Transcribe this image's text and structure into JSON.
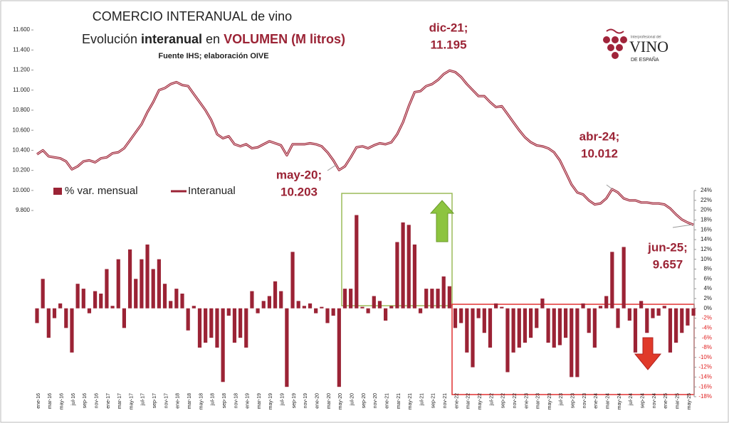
{
  "chart_data": {
    "type": "bar-line",
    "title": "COMERCIO INTERANUAL de vino",
    "title_parts": [
      "Evolución ",
      "interanual",
      " en ",
      "VOLUMEN (M litros)"
    ],
    "subtitle": "Fuente IHS; elaboración OIVE",
    "logo": {
      "small": "Interprofesional del",
      "big": "VINO",
      "sub": "DE ESPAÑA"
    },
    "categories": [
      "ene-16",
      null,
      "mar-16",
      null,
      "may-16",
      null,
      "jul-16",
      null,
      "sep-16",
      null,
      "nov-16",
      null,
      "ene-17",
      null,
      "mar-17",
      null,
      "may-17",
      null,
      "jul-17",
      null,
      "sep-17",
      null,
      "nov-17",
      null,
      "ene-18",
      null,
      "mar-18",
      null,
      "may-18",
      null,
      "jul-18",
      null,
      "sep-18",
      null,
      "nov-18",
      null,
      "ene-19",
      null,
      "mar-19",
      null,
      "may-19",
      null,
      "jul-19",
      null,
      "sep-19",
      null,
      "nov-19",
      null,
      "ene-20",
      null,
      "mar-20",
      null,
      "may-20",
      null,
      "jul-20",
      null,
      "sep-20",
      null,
      "nov-20",
      null,
      "ene-21",
      null,
      "mar-21",
      null,
      "may-21",
      null,
      "jul-21",
      null,
      "sep-21",
      null,
      "nov-21",
      null,
      "ene-22",
      null,
      "mar-22",
      null,
      "may-22",
      null,
      "jul-22",
      null,
      "sep-22",
      null,
      "nov-22",
      null,
      "ene-23",
      null,
      "mar-23",
      null,
      "may-23",
      null,
      "jul-23",
      null,
      "sep-23",
      null,
      "nov-23",
      null,
      "ene-24",
      null,
      "mar-24",
      null,
      "may-24",
      null,
      "jul-24",
      null,
      "sep-24",
      null,
      "nov-24",
      null,
      "ene-25",
      null,
      "mar-25",
      null,
      "may-25",
      null
    ],
    "series": [
      {
        "name": "% var. mensual",
        "color": "#9b2335",
        "axis": "y2",
        "values": [
          -3,
          6,
          -6,
          -2,
          1,
          -4,
          -9,
          5,
          4,
          -1,
          3.5,
          3,
          8,
          0.5,
          10,
          -4,
          12,
          6,
          10,
          13,
          8,
          10,
          5,
          1.5,
          4,
          3,
          -4.5,
          0.5,
          -8,
          -7,
          -6,
          -8,
          -15,
          -1.5,
          -7,
          -6,
          -8,
          3.5,
          -1,
          1.5,
          2.5,
          5.5,
          3.5,
          -16,
          11.5,
          1.5,
          0.5,
          1,
          -1,
          0.3,
          -3,
          -1.5,
          -16,
          4,
          4,
          19,
          0.3,
          -1,
          2.5,
          1.5,
          -2.5,
          0.5,
          13.5,
          17.5,
          17,
          13,
          -1,
          4,
          4,
          4,
          6.5,
          4.5,
          -4,
          -3,
          -9,
          -12,
          -2,
          -5,
          -8,
          1,
          0.3,
          -13,
          -9,
          -8,
          -7,
          -6,
          -4,
          2,
          -7,
          -8,
          -7.5,
          -6,
          -14,
          -14,
          1,
          -5,
          -8,
          0.5,
          2.5,
          11.5,
          -4,
          12.5,
          -2.5,
          -9,
          1.5,
          -5,
          -2,
          -1.5,
          0.5,
          -9,
          -7,
          -5,
          -3.5,
          -1.5
        ]
      },
      {
        "name": "Interanual",
        "color": "#9b2335",
        "values": [
          10360,
          10400,
          10340,
          10330,
          10320,
          10290,
          10210,
          10240,
          10290,
          10300,
          10280,
          10320,
          10330,
          10370,
          10380,
          10420,
          10500,
          10580,
          10660,
          10780,
          10880,
          11000,
          11020,
          11060,
          11080,
          11050,
          11040,
          10960,
          10880,
          10800,
          10700,
          10560,
          10520,
          10540,
          10460,
          10440,
          10460,
          10420,
          10430,
          10460,
          10490,
          10470,
          10450,
          10350,
          10460,
          10460,
          10460,
          10470,
          10460,
          10440,
          10380,
          10300,
          10203,
          10240,
          10330,
          10430,
          10440,
          10420,
          10450,
          10470,
          10460,
          10480,
          10560,
          10680,
          10840,
          10980,
          10990,
          11040,
          11060,
          11100,
          11160,
          11195,
          11180,
          11130,
          11060,
          11000,
          10940,
          10940,
          10880,
          10830,
          10840,
          10760,
          10680,
          10600,
          10530,
          10480,
          10450,
          10440,
          10420,
          10380,
          10300,
          10180,
          10060,
          9980,
          9960,
          9900,
          9860,
          9870,
          9920,
          10012,
          9980,
          9920,
          9900,
          9900,
          9880,
          9880,
          9870,
          9870,
          9860,
          9820,
          9760,
          9710,
          9680,
          9657
        ]
      }
    ],
    "ylim": [
      8000,
      11700
    ],
    "yticks": [
      {
        "value": 9800,
        "label": "9.800"
      },
      {
        "value": 10000,
        "label": "10.000"
      },
      {
        "value": 10200,
        "label": "10.200"
      },
      {
        "value": 10400,
        "label": "10.400"
      },
      {
        "value": 10600,
        "label": "10.600"
      },
      {
        "value": 10800,
        "label": "10.800"
      },
      {
        "value": 11000,
        "label": "11.000"
      },
      {
        "value": 11200,
        "label": "11.200"
      },
      {
        "value": 11400,
        "label": "11.400"
      },
      {
        "value": 11600,
        "label": "11.600"
      }
    ],
    "y2lim": [
      -18,
      24
    ],
    "y2ticks": [
      {
        "value": -18,
        "label": "-18%"
      },
      {
        "value": -16,
        "label": "-16%"
      },
      {
        "value": -14,
        "label": "-14%"
      },
      {
        "value": -12,
        "label": "-12%"
      },
      {
        "value": -10,
        "label": "-10%"
      },
      {
        "value": -8,
        "label": "-8%"
      },
      {
        "value": -6,
        "label": "-6%"
      },
      {
        "value": -4,
        "label": "-4%"
      },
      {
        "value": -2,
        "label": "-2%"
      },
      {
        "value": 0,
        "label": "0%"
      },
      {
        "value": 2,
        "label": "2%"
      },
      {
        "value": 4,
        "label": "4%"
      },
      {
        "value": 6,
        "label": "6%"
      },
      {
        "value": 8,
        "label": "8%"
      },
      {
        "value": 10,
        "label": "10%"
      },
      {
        "value": 12,
        "label": "12%"
      },
      {
        "value": 14,
        "label": "14%"
      },
      {
        "value": 16,
        "label": "16%"
      },
      {
        "value": 18,
        "label": "18%"
      },
      {
        "value": 20,
        "label": "20%"
      },
      {
        "value": 22,
        "label": "22%"
      },
      {
        "value": 24,
        "label": "24%"
      }
    ],
    "annotations": [
      [
        "may-20;",
        "10.203"
      ],
      [
        "dic-21;",
        "11.195"
      ],
      [
        "abr-24;",
        "10.012"
      ],
      [
        "jun-25;",
        "9.657"
      ]
    ]
  }
}
